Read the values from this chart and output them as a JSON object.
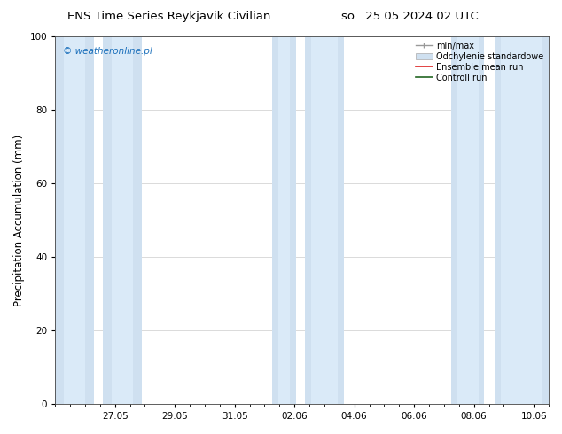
{
  "title_left": "ENS Time Series Reykjavik Civilian",
  "title_right": "so.. 25.05.2024 02 UTC",
  "ylabel": "Precipitation Accumulation (mm)",
  "watermark": "© weatheronline.pl",
  "watermark_color": "#1a6fbb",
  "ylim": [
    0,
    100
  ],
  "yticks": [
    0,
    20,
    40,
    60,
    80,
    100
  ],
  "background_color": "#ffffff",
  "plot_bg_color": "#ffffff",
  "band_color_outer": "#cfe0f0",
  "band_color_inner": "#daeaf8",
  "grid_color": "#cccccc",
  "x_tick_labels": [
    "27.05",
    "29.05",
    "31.05",
    "02.06",
    "04.06",
    "06.06",
    "08.06",
    "10.06"
  ],
  "x_tick_positions": [
    2,
    4,
    6,
    8,
    10,
    12,
    14,
    16
  ],
  "xlim": [
    0,
    16.5
  ],
  "shaded_outer": [
    [
      0.0,
      1.3
    ],
    [
      1.6,
      2.9
    ],
    [
      7.25,
      8.05
    ],
    [
      8.35,
      9.65
    ],
    [
      13.25,
      14.35
    ],
    [
      14.7,
      16.5
    ]
  ],
  "shaded_inner": [
    [
      0.3,
      1.0
    ],
    [
      1.9,
      2.6
    ],
    [
      7.45,
      7.85
    ],
    [
      8.55,
      9.45
    ],
    [
      13.45,
      14.15
    ],
    [
      14.9,
      16.3
    ]
  ],
  "title_fontsize": 9.5,
  "tick_fontsize": 7.5,
  "ylabel_fontsize": 8.5,
  "legend_fontsize": 7.0
}
